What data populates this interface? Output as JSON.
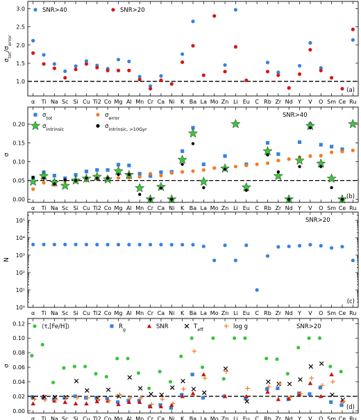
{
  "chart_data": [
    {
      "id": "a",
      "type": "scatter",
      "panel_label": "(a)",
      "ylabel": "σ_tot/σ_error",
      "ylim": [
        0.6,
        3.2
      ],
      "yticks": [
        1.0,
        1.5,
        2.0,
        2.5,
        3.0
      ],
      "ytick_labels": [
        "1.0",
        "1.5",
        "2.0",
        "2.5",
        "3.0"
      ],
      "yscale": "linear",
      "hline": 1.0,
      "legend_position": "top-left",
      "categories": [
        "α",
        "Ti",
        "Na",
        "Sc",
        "Si",
        "Cu",
        "Ti2",
        "Co",
        "Mg",
        "Al",
        "Mn",
        "Cr",
        "Ca",
        "Ni",
        "K",
        "Ba",
        "La",
        "Mo",
        "Zn",
        "Li",
        "Eu",
        "C",
        "Rb",
        "Zr",
        "Nd",
        "Y",
        "V",
        "O",
        "Sm",
        "Ce",
        "Ru"
      ],
      "series": [
        {
          "name": "SNR>40",
          "color": "#3b82d9",
          "marker": "circle",
          "values": [
            2.12,
            1.73,
            1.48,
            1.28,
            1.42,
            1.56,
            1.44,
            1.35,
            1.6,
            1.55,
            1.13,
            0.87,
            1.15,
            null,
            1.75,
            2.65,
            null,
            null,
            1.45,
            2.97,
            null,
            null,
            1.52,
            1.25,
            null,
            1.43,
            2.06,
            1.37,
            null,
            null,
            2.14
          ]
        },
        {
          "name": "SNR>20",
          "color": "#d11a1a",
          "marker": "circle",
          "values": [
            1.78,
            1.48,
            1.36,
            1.1,
            1.33,
            1.48,
            1.38,
            1.3,
            1.3,
            1.3,
            1.05,
            0.8,
            1.03,
            0.93,
            1.53,
            1.98,
            1.17,
            2.8,
            1.27,
            1.95,
            1.03,
            null,
            1.27,
            1.17,
            0.82,
            1.2,
            1.87,
            1.3,
            1.1,
            0.8,
            2.43
          ]
        }
      ]
    },
    {
      "id": "b",
      "type": "scatter",
      "panel_label": "(b)",
      "ylabel": "σ",
      "ylim": [
        -0.008,
        0.245
      ],
      "yticks": [
        0.0,
        0.05,
        0.1,
        0.15,
        0.2
      ],
      "ytick_labels": [
        "0.00",
        "0.05",
        "0.10",
        "0.15",
        "0.20"
      ],
      "yscale": "linear",
      "hline": 0.05,
      "legend_position": "top-left",
      "annotation": "SNR>40",
      "categories": [
        "α",
        "Ti",
        "Na",
        "Sc",
        "Si",
        "Cu",
        "Ti2",
        "Co",
        "Mg",
        "Al",
        "Mn",
        "Cr",
        "Ca",
        "Ni",
        "K",
        "Ba",
        "La",
        "Mo",
        "Zn",
        "Li",
        "Eu",
        "C",
        "Rb",
        "Zr",
        "Nd",
        "Y",
        "V",
        "O",
        "Sm",
        "Ce",
        "Ru"
      ],
      "series": [
        {
          "name": "σ_tot",
          "color": "#3b82d9",
          "marker": "square",
          "values": [
            0.058,
            0.072,
            0.063,
            0.056,
            0.065,
            0.074,
            0.078,
            0.078,
            0.092,
            0.09,
            0.068,
            0.062,
            0.072,
            0.073,
            0.128,
            0.19,
            0.093,
            null,
            0.115,
            null,
            0.093,
            null,
            0.15,
            0.12,
            null,
            0.152,
            0.2,
            0.145,
            0.14,
            0.133,
            null
          ]
        },
        {
          "name": "σ_error",
          "color": "#f07d26",
          "marker": "circle",
          "values": [
            0.027,
            0.044,
            0.038,
            0.048,
            0.047,
            0.05,
            0.055,
            0.058,
            0.057,
            0.057,
            0.06,
            0.068,
            0.063,
            0.07,
            0.073,
            0.075,
            0.078,
            0.083,
            0.083,
            0.087,
            0.09,
            0.093,
            0.096,
            0.103,
            0.107,
            0.112,
            0.115,
            0.116,
            0.125,
            0.127,
            0.13
          ]
        },
        {
          "name": "σ_intrinsic",
          "color": "#3ec43e",
          "marker": "star",
          "values": [
            0.047,
            0.062,
            0.045,
            0.036,
            0.05,
            0.055,
            0.06,
            0.053,
            0.075,
            0.065,
            0.03,
            0.0,
            0.033,
            0.0,
            0.105,
            0.175,
            0.047,
            null,
            0.082,
            0.2,
            0.032,
            null,
            0.128,
            0.062,
            0.0,
            0.103,
            0.195,
            0.095,
            0.055,
            0.0,
            0.2
          ]
        },
        {
          "name": "σ_intrinsic, >10Gyr",
          "color": "#000000",
          "marker": "circle",
          "values": [
            0.058,
            0.056,
            0.041,
            0.052,
            0.05,
            0.056,
            0.056,
            0.056,
            0.066,
            0.066,
            0.013,
            0.0,
            0.03,
            0.0,
            0.093,
            0.148,
            0.031,
            null,
            0.08,
            null,
            0.024,
            null,
            0.118,
            0.073,
            0.0,
            0.087,
            0.19,
            0.087,
            0.031,
            0.0,
            null
          ]
        }
      ]
    },
    {
      "id": "c",
      "type": "scatter",
      "panel_label": "(c)",
      "ylabel": "N",
      "ylim": [
        1,
        300000
      ],
      "yscale": "log",
      "yticks": [
        1,
        10,
        100,
        1000,
        10000,
        100000
      ],
      "ytick_labels": [
        "10⁰",
        "10¹",
        "10²",
        "10³",
        "10⁴",
        "10⁵"
      ],
      "annotation": "SNR>20",
      "categories": [
        "α",
        "Ti",
        "Na",
        "Sc",
        "Si",
        "Cu",
        "Ti2",
        "Co",
        "Mg",
        "Al",
        "Mn",
        "Cr",
        "Ca",
        "Ni",
        "K",
        "Ba",
        "La",
        "Mo",
        "Zn",
        "Li",
        "Eu",
        "C",
        "Rb",
        "Zr",
        "Nd",
        "Y",
        "V",
        "O",
        "Sm",
        "Ce",
        "Ru"
      ],
      "series": [
        {
          "name": "N",
          "color": "#3b82d9",
          "marker": "circle",
          "values": [
            4100,
            4100,
            4100,
            4100,
            4100,
            4100,
            4050,
            4050,
            4050,
            4050,
            4050,
            4050,
            4050,
            4000,
            4000,
            4000,
            3200,
            500,
            3700,
            500,
            3700,
            10,
            900,
            3000,
            3200,
            3500,
            4000,
            3500,
            2600,
            3100,
            500
          ]
        }
      ]
    },
    {
      "id": "d",
      "type": "scatter",
      "panel_label": "(d)",
      "ylabel": "σ",
      "ylim": [
        -0.003,
        0.127
      ],
      "yticks": [
        0.0,
        0.02,
        0.04,
        0.06,
        0.08,
        0.1,
        0.12
      ],
      "ytick_labels": [
        "0.00",
        "0.02",
        "0.04",
        "0.06",
        "0.08",
        "0.10",
        "0.12"
      ],
      "yscale": "linear",
      "hline": 0.02,
      "legend_position": "top-left",
      "annotation": "SNR>20",
      "categories": [
        "α",
        "Ti",
        "Na",
        "Sc",
        "Si",
        "Cu",
        "Ti2",
        "Co",
        "Mg",
        "Al",
        "Mn",
        "Cr",
        "Ca",
        "Ni",
        "K",
        "Ba",
        "La",
        "Mo",
        "Zn",
        "Li",
        "Eu",
        "C",
        "Rb",
        "Zr",
        "Nd",
        "Y",
        "V",
        "O",
        "Sm",
        "Ce",
        "Ru"
      ],
      "series": [
        {
          "name": "⟨τ,[Fe/H]⟩",
          "color": "#3ec43e",
          "marker": "circle",
          "values": [
            0.076,
            0.091,
            0.039,
            0.059,
            0.061,
            0.061,
            0.051,
            0.047,
            0.072,
            0.072,
            0.052,
            0.031,
            0.054,
            0.04,
            0.075,
            0.1,
            0.06,
            0.1,
            0.044,
            0.1,
            0.1,
            null,
            0.072,
            0.071,
            0.051,
            0.087,
            0.1,
            0.1,
            0.061,
            0.054,
            null
          ]
        },
        {
          "name": "R_g",
          "color": "#3b82d9",
          "marker": "square",
          "values": [
            0.019,
            0.018,
            0.016,
            0.018,
            0.02,
            0.018,
            0.018,
            0.017,
            0.012,
            0.014,
            0.014,
            0.006,
            0.008,
            0.004,
            0.022,
            0.05,
            0.018,
            null,
            0.02,
            null,
            0.017,
            null,
            0.03,
            0.031,
            0.016,
            0.024,
            0.023,
            0.032,
            0.012,
            0.008,
            null
          ]
        },
        {
          "name": "SNR",
          "color": "#c41414",
          "marker": "triangle",
          "values": [
            0.01,
            0.02,
            0.014,
            0.012,
            0.01,
            0.01,
            0.013,
            0.014,
            0.009,
            0.012,
            0.012,
            0.006,
            0.006,
            0.008,
            0.02,
            0.024,
            0.05,
            null,
            0.02,
            null,
            0.02,
            null,
            0.026,
            0.016,
            0.017,
            0.023,
            0.038,
            0.02,
            0.05,
            0.014,
            null
          ]
        },
        {
          "name": "T_eff",
          "color": "#000000",
          "marker": "x",
          "values": [
            0.018,
            0.019,
            0.019,
            0.019,
            0.041,
            0.028,
            0.017,
            0.029,
            0.02,
            0.046,
            0.031,
            0.023,
            0.022,
            0.032,
            0.041,
            0.03,
            0.025,
            null,
            0.058,
            null,
            0.013,
            null,
            0.04,
            0.037,
            0.037,
            0.043,
            0.061,
            0.065,
            0.022,
            0.015,
            null
          ]
        },
        {
          "name": "log g",
          "color": "#f07d26",
          "marker": "plus",
          "values": [
            0.016,
            0.015,
            0.015,
            0.018,
            0.018,
            0.018,
            0.016,
            0.014,
            0.022,
            0.018,
            0.018,
            0.009,
            0.016,
            0.01,
            0.03,
            0.082,
            0.045,
            null,
            0.054,
            null,
            0.031,
            null,
            0.033,
            0.037,
            0.019,
            0.024,
            0.045,
            0.035,
            0.04,
            0.013,
            null
          ]
        }
      ]
    }
  ]
}
